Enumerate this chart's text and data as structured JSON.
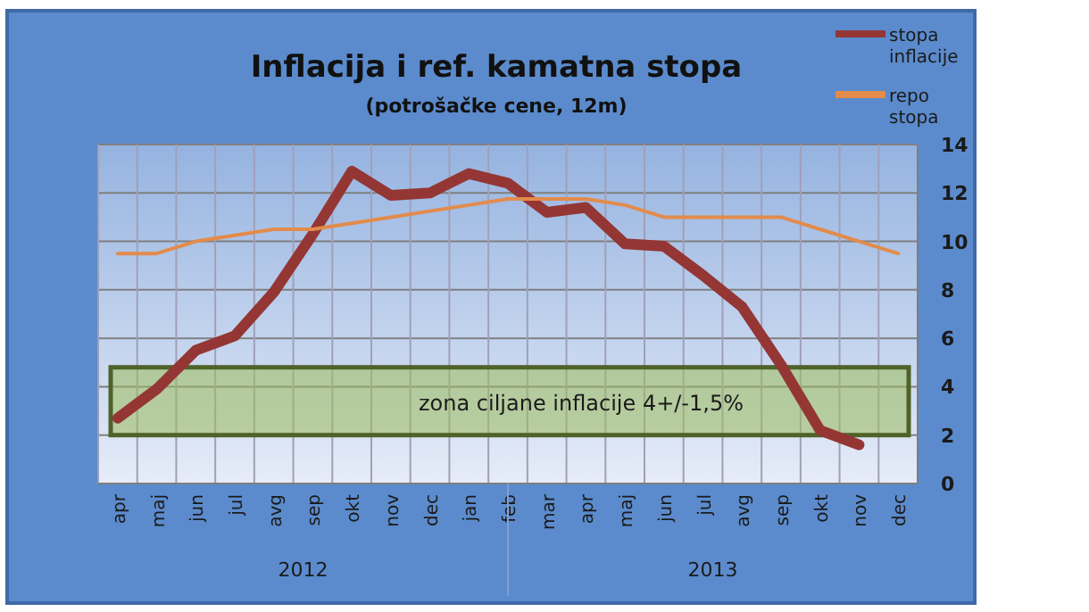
{
  "chart_data": {
    "type": "line",
    "title": "Inflacija i ref. kamatna stopa",
    "subtitle": "(potrošačke cene, 12m)",
    "categories": [
      "apr",
      "maj",
      "jun",
      "jul",
      "avg",
      "sep",
      "okt",
      "nov",
      "dec",
      "jan",
      "feb",
      "mar",
      "apr",
      "maj",
      "jun",
      "jul",
      "avg",
      "sep",
      "okt",
      "nov",
      "dec"
    ],
    "series": [
      {
        "name": "stopa inflacije",
        "color": "#943634",
        "values": [
          2.7,
          3.9,
          5.5,
          6.1,
          7.9,
          10.3,
          12.9,
          11.9,
          12.0,
          12.8,
          12.4,
          11.2,
          11.4,
          9.9,
          9.8,
          8.6,
          7.3,
          4.9,
          2.2,
          1.6,
          null
        ]
      },
      {
        "name": "repo stopa",
        "color": "#e38b4b",
        "values": [
          9.5,
          9.5,
          10.0,
          10.25,
          10.5,
          10.5,
          10.75,
          11.0,
          11.25,
          11.5,
          11.75,
          11.75,
          11.75,
          11.5,
          11.0,
          11.0,
          11.0,
          11.0,
          10.5,
          10.0,
          9.5
        ]
      }
    ],
    "ylim": [
      0,
      14
    ],
    "yticks": [
      0,
      2,
      4,
      6,
      8,
      10,
      12,
      14
    ],
    "grid": true,
    "legend": "top right",
    "bands": [
      {
        "axis": "y",
        "from": 2,
        "to": 4.8,
        "label": "zona ciljane inflacije 4+/-1,5%",
        "color": "#9bbb59"
      }
    ],
    "annotations": [
      "2012",
      "2013"
    ]
  }
}
